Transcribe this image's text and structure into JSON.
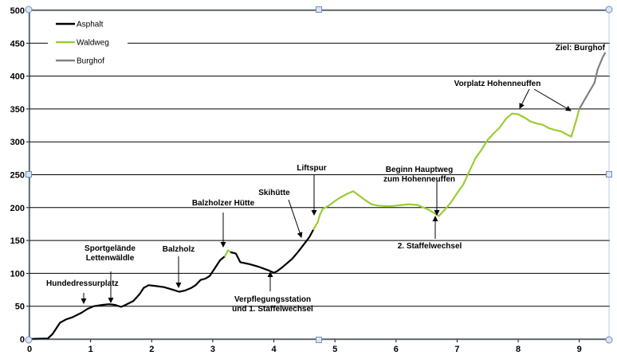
{
  "chart_data": {
    "type": "line",
    "xlim": [
      0,
      9.5
    ],
    "ylim": [
      0,
      500
    ],
    "x_ticks": [
      "0",
      "1",
      "2",
      "3",
      "4",
      "5",
      "6",
      "7",
      "8",
      "9"
    ],
    "y_ticks": [
      "0",
      "50",
      "100",
      "150",
      "200",
      "250",
      "300",
      "350",
      "400",
      "450",
      "500"
    ],
    "grid": "horizontal",
    "legend_position": "top-left",
    "colors": {
      "Asphalt": "#000000",
      "Waldweg": "#9acd32",
      "Burghof": "#808080"
    },
    "series": [
      {
        "name": "Asphalt",
        "points": [
          [
            0,
            0
          ],
          [
            0.1,
            0.5
          ],
          [
            0.3,
            1
          ],
          [
            0.38,
            8
          ],
          [
            0.5,
            25
          ],
          [
            0.6,
            30
          ],
          [
            0.7,
            33
          ],
          [
            0.85,
            40
          ],
          [
            0.95,
            46
          ],
          [
            1.05,
            50
          ],
          [
            1.2,
            52
          ],
          [
            1.3,
            53
          ],
          [
            1.4,
            52
          ],
          [
            1.5,
            49
          ],
          [
            1.55,
            51
          ],
          [
            1.7,
            58
          ],
          [
            1.8,
            68
          ],
          [
            1.87,
            78
          ],
          [
            1.95,
            82
          ],
          [
            2.05,
            81
          ],
          [
            2.2,
            79
          ],
          [
            2.35,
            75
          ],
          [
            2.45,
            72
          ],
          [
            2.55,
            74
          ],
          [
            2.65,
            78
          ],
          [
            2.72,
            82
          ],
          [
            2.8,
            90
          ],
          [
            2.88,
            92
          ],
          [
            2.95,
            96
          ],
          [
            3.05,
            110
          ],
          [
            3.12,
            120
          ],
          [
            3.2,
            126
          ]
        ]
      },
      {
        "name": "Waldweg",
        "points": [
          [
            3.2,
            126
          ],
          [
            3.25,
            135
          ],
          [
            3.3,
            132
          ]
        ]
      },
      {
        "name": "Asphalt",
        "points": [
          [
            3.3,
            132
          ],
          [
            3.38,
            130
          ],
          [
            3.45,
            117
          ],
          [
            3.55,
            115
          ],
          [
            3.6,
            114
          ],
          [
            3.75,
            110
          ],
          [
            3.9,
            105
          ],
          [
            4.0,
            101
          ],
          [
            4.05,
            103
          ],
          [
            4.15,
            110
          ],
          [
            4.3,
            122
          ],
          [
            4.4,
            133
          ],
          [
            4.5,
            145
          ],
          [
            4.58,
            155
          ],
          [
            4.65,
            167
          ]
        ]
      },
      {
        "name": "Waldweg",
        "points": [
          [
            4.65,
            167
          ],
          [
            4.72,
            178
          ],
          [
            4.75,
            188
          ],
          [
            4.8,
            198
          ],
          [
            4.9,
            203
          ],
          [
            5.0,
            210
          ],
          [
            5.1,
            216
          ],
          [
            5.2,
            221
          ],
          [
            5.3,
            225
          ],
          [
            5.4,
            218
          ],
          [
            5.5,
            211
          ],
          [
            5.6,
            205
          ],
          [
            5.7,
            203
          ],
          [
            5.9,
            202
          ],
          [
            6.0,
            203
          ],
          [
            6.1,
            204
          ],
          [
            6.2,
            205
          ],
          [
            6.35,
            204
          ],
          [
            6.45,
            200
          ],
          [
            6.55,
            196
          ],
          [
            6.7,
            187
          ],
          [
            6.8,
            197
          ],
          [
            6.9,
            208
          ],
          [
            7.0,
            222
          ],
          [
            7.1,
            235
          ],
          [
            7.2,
            255
          ],
          [
            7.3,
            275
          ],
          [
            7.4,
            288
          ],
          [
            7.5,
            303
          ],
          [
            7.6,
            313
          ],
          [
            7.7,
            322
          ],
          [
            7.8,
            335
          ],
          [
            7.9,
            343
          ],
          [
            8.0,
            342
          ],
          [
            8.1,
            337
          ],
          [
            8.2,
            331
          ],
          [
            8.3,
            328
          ],
          [
            8.4,
            326
          ],
          [
            8.5,
            321
          ],
          [
            8.6,
            318
          ],
          [
            8.7,
            316
          ],
          [
            8.8,
            311
          ],
          [
            8.87,
            308
          ],
          [
            8.95,
            333
          ],
          [
            9.0,
            350
          ]
        ]
      },
      {
        "name": "Burghof",
        "points": [
          [
            9.0,
            350
          ],
          [
            9.1,
            366
          ],
          [
            9.2,
            382
          ],
          [
            9.25,
            390
          ],
          [
            9.3,
            410
          ],
          [
            9.38,
            428
          ],
          [
            9.42,
            435
          ]
        ]
      }
    ],
    "annotations": [
      {
        "label": "Hundedressurplatz",
        "x": 0.85,
        "y": 44
      },
      {
        "label": "Sportgelände\nLettenwäldle",
        "x": 1.3,
        "y": 53
      },
      {
        "label": "Balzholz",
        "x": 2.45,
        "y": 72
      },
      {
        "label": "Balzholzer Hütte",
        "x": 3.25,
        "y": 135
      },
      {
        "label": "Skihütte",
        "x": 4.5,
        "y": 151
      },
      {
        "label": "Verpflegungsstation\nund 1. Staffelwechsel",
        "x": 4.0,
        "y": 101
      },
      {
        "label": "Liftspur",
        "x": 4.73,
        "y": 185
      },
      {
        "label": "Beginn Hauptweg\nzum Hohenneuffen",
        "x": 6.7,
        "y": 187
      },
      {
        "label": "2. Staffelwechsel",
        "x": 6.7,
        "y": 187
      },
      {
        "label": "Vorplatz Hohenneuffen",
        "x": 8.05,
        "y": 343
      },
      {
        "label": "Ziel: Burghof",
        "x": 9.42,
        "y": 435
      }
    ]
  }
}
